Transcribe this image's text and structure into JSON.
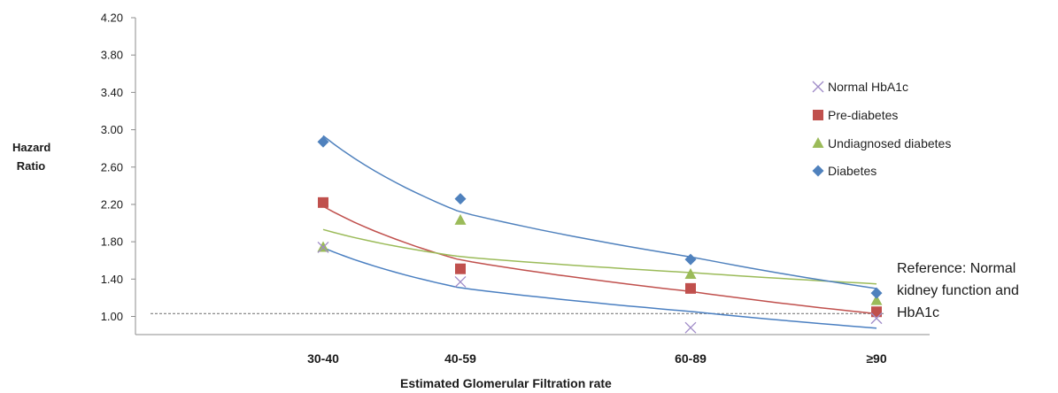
{
  "chart_data": {
    "type": "scatter",
    "title": "",
    "xlabel": "Estimated Glomerular Filtration rate",
    "ylabel_lines": [
      "Hazard",
      "Ratio"
    ],
    "categories": [
      "30-40",
      "40-59",
      "60-89",
      "≥90"
    ],
    "y_ticks": [
      "1.00",
      "1.40",
      "1.80",
      "2.20",
      "2.60",
      "3.00",
      "3.40",
      "3.80",
      "4.20"
    ],
    "ylim": [
      0.8,
      4.2
    ],
    "grid": false,
    "legend_position": "right",
    "reference_line": {
      "y": 1.03,
      "style": "dashed",
      "color": "#7f7f7f"
    },
    "reference_note": "Reference: Normal kidney function and HbA1c",
    "series": [
      {
        "name": "Normal HbA1c",
        "marker": "x",
        "color": "#a08cc8",
        "trend_color": "#4a7fc1",
        "values": [
          1.74,
          1.37,
          0.88,
          0.98
        ]
      },
      {
        "name": "Pre-diabetes",
        "marker": "square",
        "color": "#c0504d",
        "trend_color": "#c0504d",
        "values": [
          2.22,
          1.51,
          1.3,
          1.05
        ]
      },
      {
        "name": "Undiagnosed diabetes",
        "marker": "triangle",
        "color": "#9bbb59",
        "trend_color": "#9bbb59",
        "values": [
          1.74,
          2.03,
          1.45,
          1.17
        ]
      },
      {
        "name": "Diabetes",
        "marker": "diamond",
        "color": "#4f81bd",
        "trend_color": "#4f81bd",
        "values": [
          2.87,
          2.26,
          1.61,
          1.25
        ]
      }
    ]
  }
}
